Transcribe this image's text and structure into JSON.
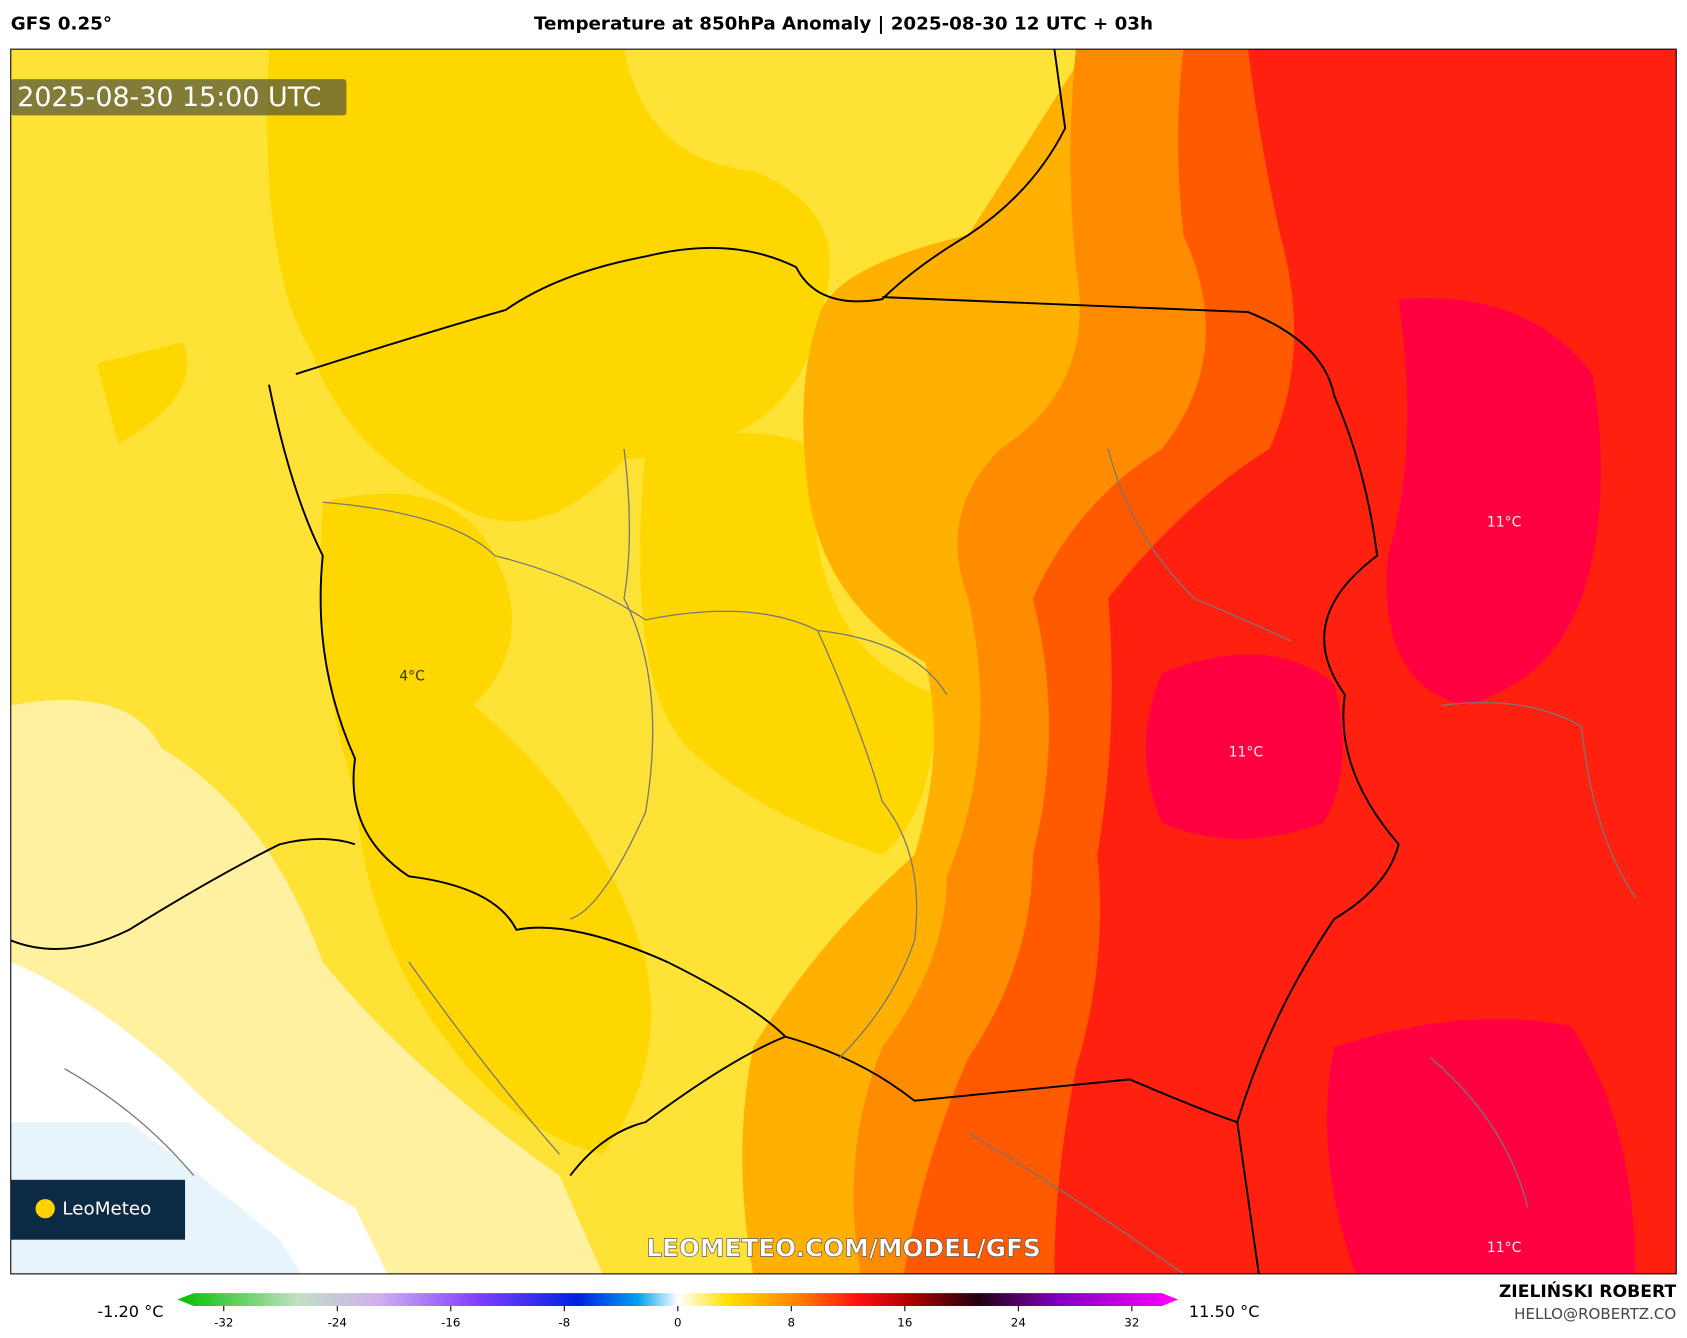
{
  "header": {
    "model": "GFS 0.25°",
    "title": "Temperature at 850hPa Anomaly | 2025-08-30 12 UTC + 03h"
  },
  "map": {
    "timestamp": "2025-08-30 15:00 UTC",
    "labels": [
      "4°C",
      "11°C",
      "11°C",
      "11°C"
    ],
    "watermark": "LEOMETEO.COM/MODEL/GFS",
    "logo": "LeoMeteo"
  },
  "colorbar": {
    "min_label": "-1.20 °C",
    "max_label": "11.50 °C",
    "ticks": [
      -32,
      -24,
      -16,
      -8,
      0,
      8,
      16,
      24,
      32
    ]
  },
  "footer": {
    "author": "ZIELIŃSKI ROBERT",
    "contact": "HELLO@ROBERTZ.CO"
  }
}
